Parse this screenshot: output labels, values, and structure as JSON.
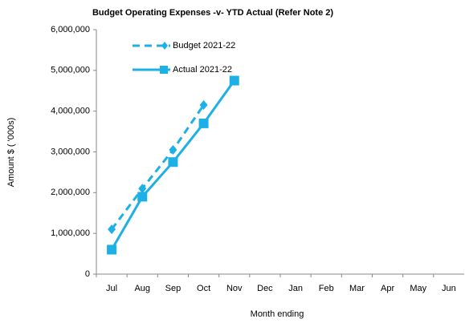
{
  "chart_data": {
    "type": "line",
    "title": "Budget Operating Expenses -v- YTD Actual (Refer Note 2)",
    "x_label": "Month ending",
    "y_label": "Amount $ ( '000s)",
    "categories": [
      "Jul",
      "Aug",
      "Sep",
      "Oct",
      "Nov",
      "Dec",
      "Jan",
      "Feb",
      "Mar",
      "Apr",
      "May",
      "Jun"
    ],
    "series": [
      {
        "name": "Budget 2021-22",
        "color": "#1cb0e6",
        "style": "dashed",
        "marker": "diamond",
        "values": [
          1100000,
          2100000,
          3050000,
          4150000,
          null,
          null,
          null,
          null,
          null,
          null,
          null,
          null
        ]
      },
      {
        "name": "Actual 2021-22",
        "color": "#1cb0e6",
        "style": "solid",
        "marker": "square",
        "values": [
          600000,
          1900000,
          2750000,
          3700000,
          4750000,
          null,
          null,
          null,
          null,
          null,
          null,
          null
        ]
      }
    ],
    "ylim": [
      0,
      6000000
    ],
    "yticks": [
      0,
      {
        "value": 1000000,
        "label": "1,000,000"
      },
      {
        "value": 2000000,
        "label": "2,000,000"
      },
      {
        "value": 3000000,
        "label": "3,000,000"
      },
      {
        "value": 4000000,
        "label": "4,000,000"
      },
      {
        "value": 5000000,
        "label": "5,000,000"
      },
      {
        "value": 6000000,
        "label": "6,000,000"
      }
    ],
    "grid": false,
    "legend": "top-left"
  }
}
